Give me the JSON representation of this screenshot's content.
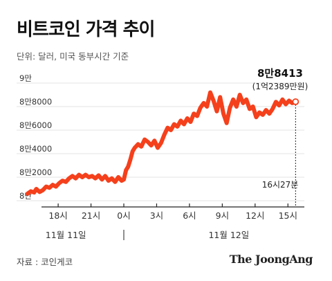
{
  "title": "비트코인 가격 추이",
  "subtitle": "단위: 달러, 미국 동부시간 기준",
  "source": "자료 : 코인게코",
  "brand": "The JoongAng",
  "colors": {
    "line": "#f5401c",
    "accent": "#f5401c",
    "grid": "#e3e3e3",
    "axis": "#222222",
    "text": "#333333"
  },
  "chart_data": {
    "type": "line",
    "x_unit": "hours since 11월 11일 00시 (US Eastern)",
    "ylim": [
      80000,
      90000
    ],
    "yticks": [
      {
        "value": 80000,
        "label": "8만"
      },
      {
        "value": 82000,
        "label": "8만2000"
      },
      {
        "value": 84000,
        "label": "8만4000"
      },
      {
        "value": 86000,
        "label": "8만6000"
      },
      {
        "value": 88000,
        "label": "8만8000"
      },
      {
        "value": 90000,
        "label": "9만"
      }
    ],
    "xticks": [
      {
        "x": 18,
        "label": "18시"
      },
      {
        "x": 21,
        "label": "21시"
      },
      {
        "x": 24,
        "label": "0시"
      },
      {
        "x": 27,
        "label": "3시"
      },
      {
        "x": 30,
        "label": "6시"
      },
      {
        "x": 33,
        "label": "9시"
      },
      {
        "x": 36,
        "label": "12시"
      },
      {
        "x": 39,
        "label": "15시"
      }
    ],
    "xlim": [
      14.2,
      40.5
    ],
    "date_labels": [
      {
        "x": 18.7,
        "label": "11월 11일"
      },
      {
        "x": 33.6,
        "label": "11월 12일"
      }
    ],
    "day_divider_x": 24,
    "series": [
      {
        "values": [
          [
            15.2,
            80600
          ],
          [
            15.5,
            80800
          ],
          [
            15.8,
            80700
          ],
          [
            16.0,
            81000
          ],
          [
            16.3,
            80750
          ],
          [
            16.6,
            80900
          ],
          [
            16.9,
            81200
          ],
          [
            17.2,
            81100
          ],
          [
            17.5,
            81350
          ],
          [
            17.8,
            81200
          ],
          [
            18.1,
            81500
          ],
          [
            18.4,
            81700
          ],
          [
            18.7,
            81600
          ],
          [
            19.0,
            81900
          ],
          [
            19.3,
            82100
          ],
          [
            19.6,
            81900
          ],
          [
            19.9,
            82200
          ],
          [
            20.2,
            82000
          ],
          [
            20.5,
            82200
          ],
          [
            20.8,
            82000
          ],
          [
            21.1,
            82100
          ],
          [
            21.4,
            81900
          ],
          [
            21.7,
            82150
          ],
          [
            22.0,
            81800
          ],
          [
            22.3,
            82100
          ],
          [
            22.6,
            81700
          ],
          [
            22.9,
            81900
          ],
          [
            23.2,
            81600
          ],
          [
            23.5,
            82000
          ],
          [
            23.8,
            81700
          ],
          [
            24.0,
            81800
          ],
          [
            24.2,
            82600
          ],
          [
            24.4,
            82900
          ],
          [
            24.6,
            83500
          ],
          [
            24.8,
            84200
          ],
          [
            25.0,
            84500
          ],
          [
            25.3,
            84800
          ],
          [
            25.6,
            84600
          ],
          [
            25.9,
            85200
          ],
          [
            26.2,
            85000
          ],
          [
            26.5,
            84700
          ],
          [
            26.8,
            85100
          ],
          [
            27.1,
            84500
          ],
          [
            27.4,
            84900
          ],
          [
            27.7,
            85600
          ],
          [
            28.0,
            86200
          ],
          [
            28.3,
            86000
          ],
          [
            28.6,
            86500
          ],
          [
            28.9,
            86300
          ],
          [
            29.2,
            86800
          ],
          [
            29.5,
            86500
          ],
          [
            29.8,
            87000
          ],
          [
            30.1,
            86700
          ],
          [
            30.4,
            87400
          ],
          [
            30.7,
            87200
          ],
          [
            31.0,
            87900
          ],
          [
            31.3,
            88300
          ],
          [
            31.6,
            88000
          ],
          [
            31.9,
            89200
          ],
          [
            32.2,
            88500
          ],
          [
            32.5,
            87600
          ],
          [
            32.8,
            88800
          ],
          [
            33.1,
            87400
          ],
          [
            33.4,
            86600
          ],
          [
            33.7,
            87900
          ],
          [
            34.0,
            88600
          ],
          [
            34.3,
            88000
          ],
          [
            34.6,
            89000
          ],
          [
            34.9,
            88300
          ],
          [
            35.2,
            88600
          ],
          [
            35.5,
            87800
          ],
          [
            35.8,
            88000
          ],
          [
            36.1,
            87100
          ],
          [
            36.4,
            87500
          ],
          [
            36.7,
            87300
          ],
          [
            37.0,
            87700
          ],
          [
            37.3,
            87400
          ],
          [
            37.6,
            87800
          ],
          [
            37.9,
            88400
          ],
          [
            38.2,
            88100
          ],
          [
            38.5,
            88600
          ],
          [
            38.8,
            88200
          ],
          [
            39.1,
            88500
          ],
          [
            39.4,
            88300
          ],
          [
            39.7,
            88413
          ]
        ]
      }
    ],
    "annotation": {
      "x": 39.7,
      "y": 88413,
      "price_usd": "8만8413",
      "price_krw": "(1억2389만원)",
      "time": "16시27분"
    }
  }
}
